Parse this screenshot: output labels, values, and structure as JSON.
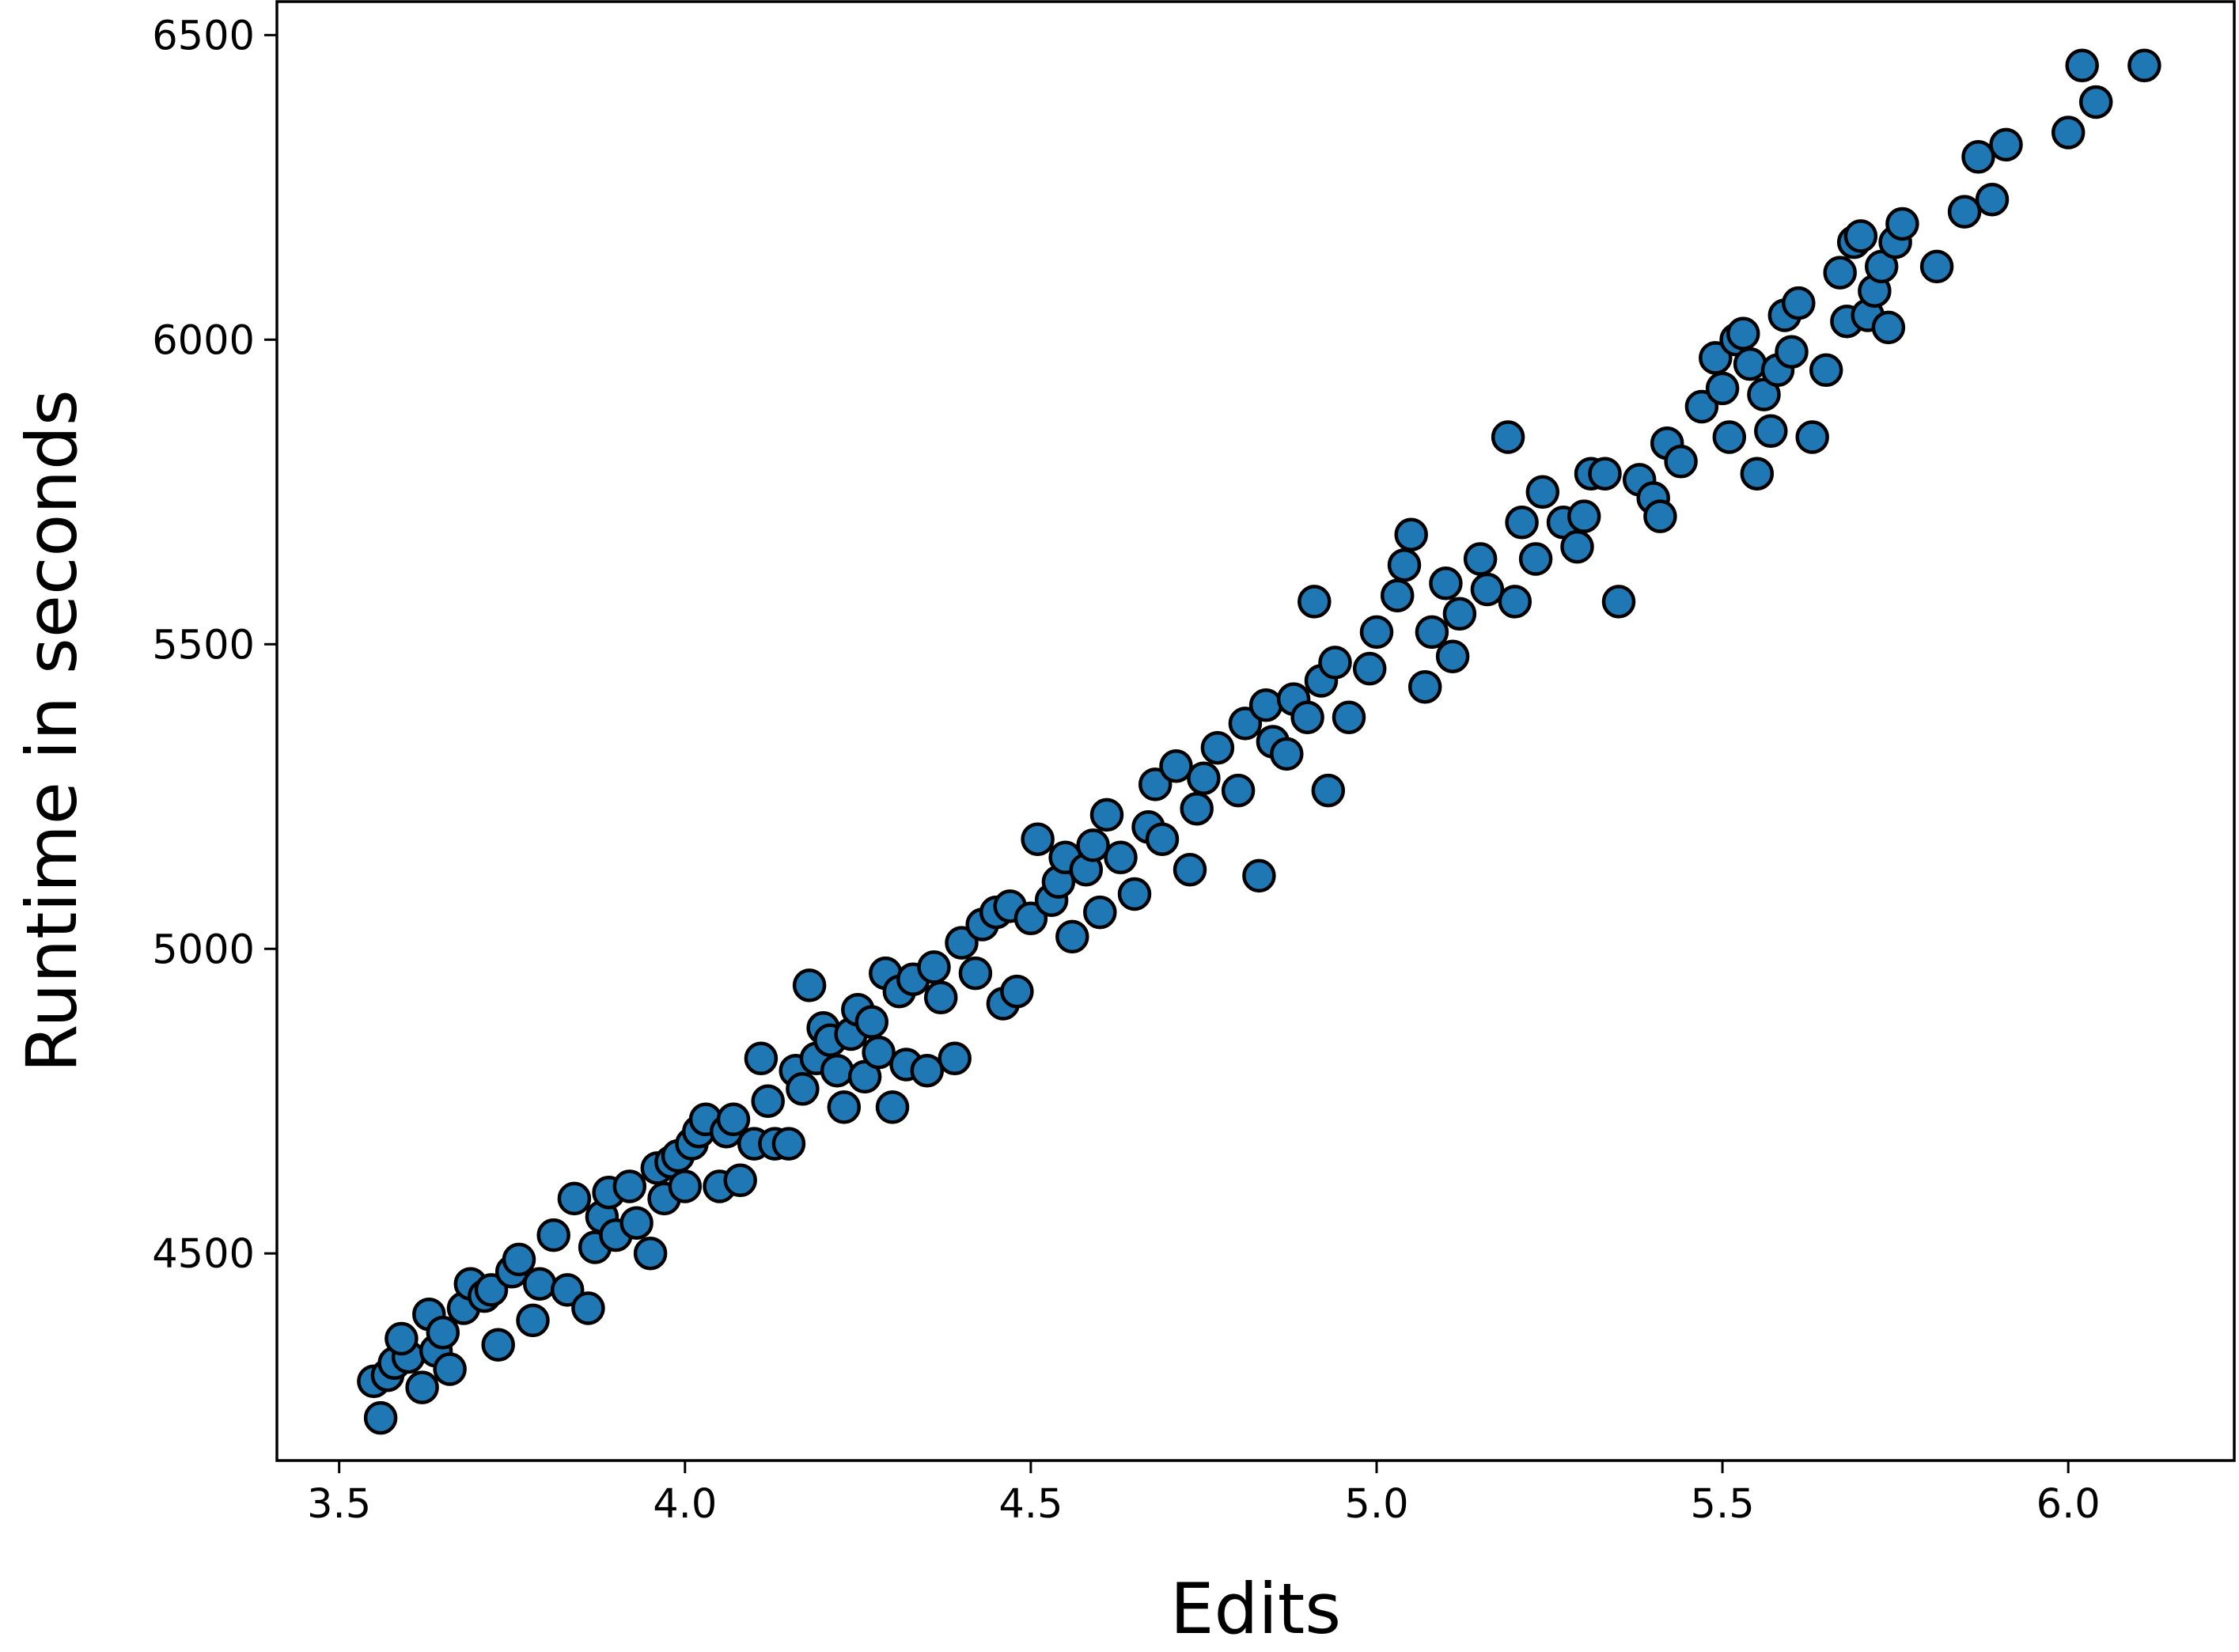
{
  "chart_data": {
    "type": "scatter",
    "xlabel": "Edits",
    "ylabel": "Runtime in seconds",
    "xlim": [
      3.41,
      6.24
    ],
    "ylim": [
      4160,
      6555
    ],
    "xticks": [
      3.5,
      4.0,
      4.5,
      5.0,
      5.5,
      6.0
    ],
    "xtick_labels": [
      "3.5",
      "4.0",
      "4.5",
      "5.0",
      "5.5",
      "6.0"
    ],
    "yticks": [
      4500,
      5000,
      5500,
      6000,
      6500
    ],
    "ytick_labels": [
      "4500",
      "5000",
      "5500",
      "6000",
      "6500"
    ],
    "grid": false,
    "legend": false,
    "marker_color": "#1f77b4",
    "marker_edge_color": "#000000",
    "series": [
      {
        "points": [
          [
            3.55,
            4290
          ],
          [
            3.57,
            4300
          ],
          [
            3.56,
            4230
          ],
          [
            3.58,
            4320
          ],
          [
            3.6,
            4330
          ],
          [
            3.62,
            4280
          ],
          [
            3.59,
            4360
          ],
          [
            3.64,
            4340
          ],
          [
            3.66,
            4310
          ],
          [
            3.63,
            4400
          ],
          [
            3.65,
            4370
          ],
          [
            3.68,
            4410
          ],
          [
            3.69,
            4450
          ],
          [
            3.71,
            4430
          ],
          [
            3.72,
            4440
          ],
          [
            3.73,
            4350
          ],
          [
            3.75,
            4470
          ],
          [
            3.76,
            4490
          ],
          [
            3.78,
            4390
          ],
          [
            3.79,
            4450
          ],
          [
            3.81,
            4530
          ],
          [
            3.83,
            4440
          ],
          [
            3.84,
            4590
          ],
          [
            3.86,
            4410
          ],
          [
            3.87,
            4510
          ],
          [
            3.88,
            4560
          ],
          [
            3.89,
            4600
          ],
          [
            3.9,
            4530
          ],
          [
            3.92,
            4610
          ],
          [
            3.93,
            4550
          ],
          [
            3.95,
            4500
          ],
          [
            3.96,
            4640
          ],
          [
            3.97,
            4590
          ],
          [
            3.98,
            4650
          ],
          [
            3.99,
            4660
          ],
          [
            4.0,
            4610
          ],
          [
            4.01,
            4680
          ],
          [
            4.02,
            4700
          ],
          [
            4.03,
            4720
          ],
          [
            4.05,
            4610
          ],
          [
            4.06,
            4700
          ],
          [
            4.07,
            4720
          ],
          [
            4.08,
            4620
          ],
          [
            4.1,
            4680
          ],
          [
            4.11,
            4820
          ],
          [
            4.12,
            4750
          ],
          [
            4.13,
            4680
          ],
          [
            4.15,
            4680
          ],
          [
            4.16,
            4800
          ],
          [
            4.17,
            4770
          ],
          [
            4.18,
            4940
          ],
          [
            4.19,
            4820
          ],
          [
            4.2,
            4870
          ],
          [
            4.21,
            4850
          ],
          [
            4.22,
            4800
          ],
          [
            4.23,
            4740
          ],
          [
            4.24,
            4860
          ],
          [
            4.25,
            4900
          ],
          [
            4.26,
            4790
          ],
          [
            4.27,
            4880
          ],
          [
            4.28,
            4830
          ],
          [
            4.29,
            4960
          ],
          [
            4.3,
            4740
          ],
          [
            4.31,
            4930
          ],
          [
            4.32,
            4810
          ],
          [
            4.33,
            4950
          ],
          [
            4.35,
            4800
          ],
          [
            4.36,
            4970
          ],
          [
            4.37,
            4920
          ],
          [
            4.39,
            4820
          ],
          [
            4.4,
            5010
          ],
          [
            4.42,
            4960
          ],
          [
            4.43,
            5040
          ],
          [
            4.45,
            5060
          ],
          [
            4.46,
            4910
          ],
          [
            4.47,
            5070
          ],
          [
            4.48,
            4930
          ],
          [
            4.5,
            5050
          ],
          [
            4.51,
            5180
          ],
          [
            4.53,
            5080
          ],
          [
            4.54,
            5110
          ],
          [
            4.55,
            5150
          ],
          [
            4.56,
            5020
          ],
          [
            4.58,
            5130
          ],
          [
            4.59,
            5170
          ],
          [
            4.6,
            5060
          ],
          [
            4.61,
            5220
          ],
          [
            4.63,
            5150
          ],
          [
            4.65,
            5090
          ],
          [
            4.67,
            5200
          ],
          [
            4.68,
            5270
          ],
          [
            4.69,
            5180
          ],
          [
            4.71,
            5300
          ],
          [
            4.73,
            5130
          ],
          [
            4.74,
            5230
          ],
          [
            4.75,
            5280
          ],
          [
            4.77,
            5330
          ],
          [
            4.8,
            5260
          ],
          [
            4.81,
            5370
          ],
          [
            4.83,
            5120
          ],
          [
            4.84,
            5400
          ],
          [
            4.85,
            5340
          ],
          [
            4.87,
            5320
          ],
          [
            4.88,
            5410
          ],
          [
            4.9,
            5380
          ],
          [
            4.91,
            5570
          ],
          [
            4.92,
            5440
          ],
          [
            4.93,
            5260
          ],
          [
            4.94,
            5470
          ],
          [
            4.96,
            5380
          ],
          [
            4.99,
            5460
          ],
          [
            5.0,
            5520
          ],
          [
            5.03,
            5580
          ],
          [
            5.04,
            5630
          ],
          [
            5.05,
            5680
          ],
          [
            5.07,
            5430
          ],
          [
            5.08,
            5520
          ],
          [
            5.1,
            5600
          ],
          [
            5.11,
            5480
          ],
          [
            5.12,
            5550
          ],
          [
            5.15,
            5640
          ],
          [
            5.16,
            5590
          ],
          [
            5.19,
            5840
          ],
          [
            5.2,
            5570
          ],
          [
            5.21,
            5700
          ],
          [
            5.23,
            5640
          ],
          [
            5.24,
            5750
          ],
          [
            5.27,
            5700
          ],
          [
            5.29,
            5660
          ],
          [
            5.3,
            5710
          ],
          [
            5.31,
            5780
          ],
          [
            5.33,
            5780
          ],
          [
            5.35,
            5570
          ],
          [
            5.38,
            5770
          ],
          [
            5.4,
            5740
          ],
          [
            5.41,
            5710
          ],
          [
            5.42,
            5830
          ],
          [
            5.44,
            5800
          ],
          [
            5.47,
            5890
          ],
          [
            5.49,
            5970
          ],
          [
            5.5,
            5920
          ],
          [
            5.51,
            5840
          ],
          [
            5.52,
            6000
          ],
          [
            5.53,
            6010
          ],
          [
            5.54,
            5960
          ],
          [
            5.55,
            5780
          ],
          [
            5.56,
            5910
          ],
          [
            5.57,
            5850
          ],
          [
            5.58,
            5950
          ],
          [
            5.59,
            6040
          ],
          [
            5.6,
            5980
          ],
          [
            5.61,
            6060
          ],
          [
            5.63,
            5840
          ],
          [
            5.65,
            5950
          ],
          [
            5.67,
            6110
          ],
          [
            5.68,
            6030
          ],
          [
            5.69,
            6160
          ],
          [
            5.7,
            6170
          ],
          [
            5.71,
            6040
          ],
          [
            5.72,
            6080
          ],
          [
            5.73,
            6120
          ],
          [
            5.74,
            6020
          ],
          [
            5.75,
            6160
          ],
          [
            5.76,
            6190
          ],
          [
            5.81,
            6120
          ],
          [
            5.85,
            6210
          ],
          [
            5.87,
            6300
          ],
          [
            5.89,
            6230
          ],
          [
            5.91,
            6320
          ],
          [
            6.0,
            6340
          ],
          [
            6.02,
            6450
          ],
          [
            6.04,
            6390
          ],
          [
            6.11,
            6450
          ]
        ]
      }
    ]
  }
}
